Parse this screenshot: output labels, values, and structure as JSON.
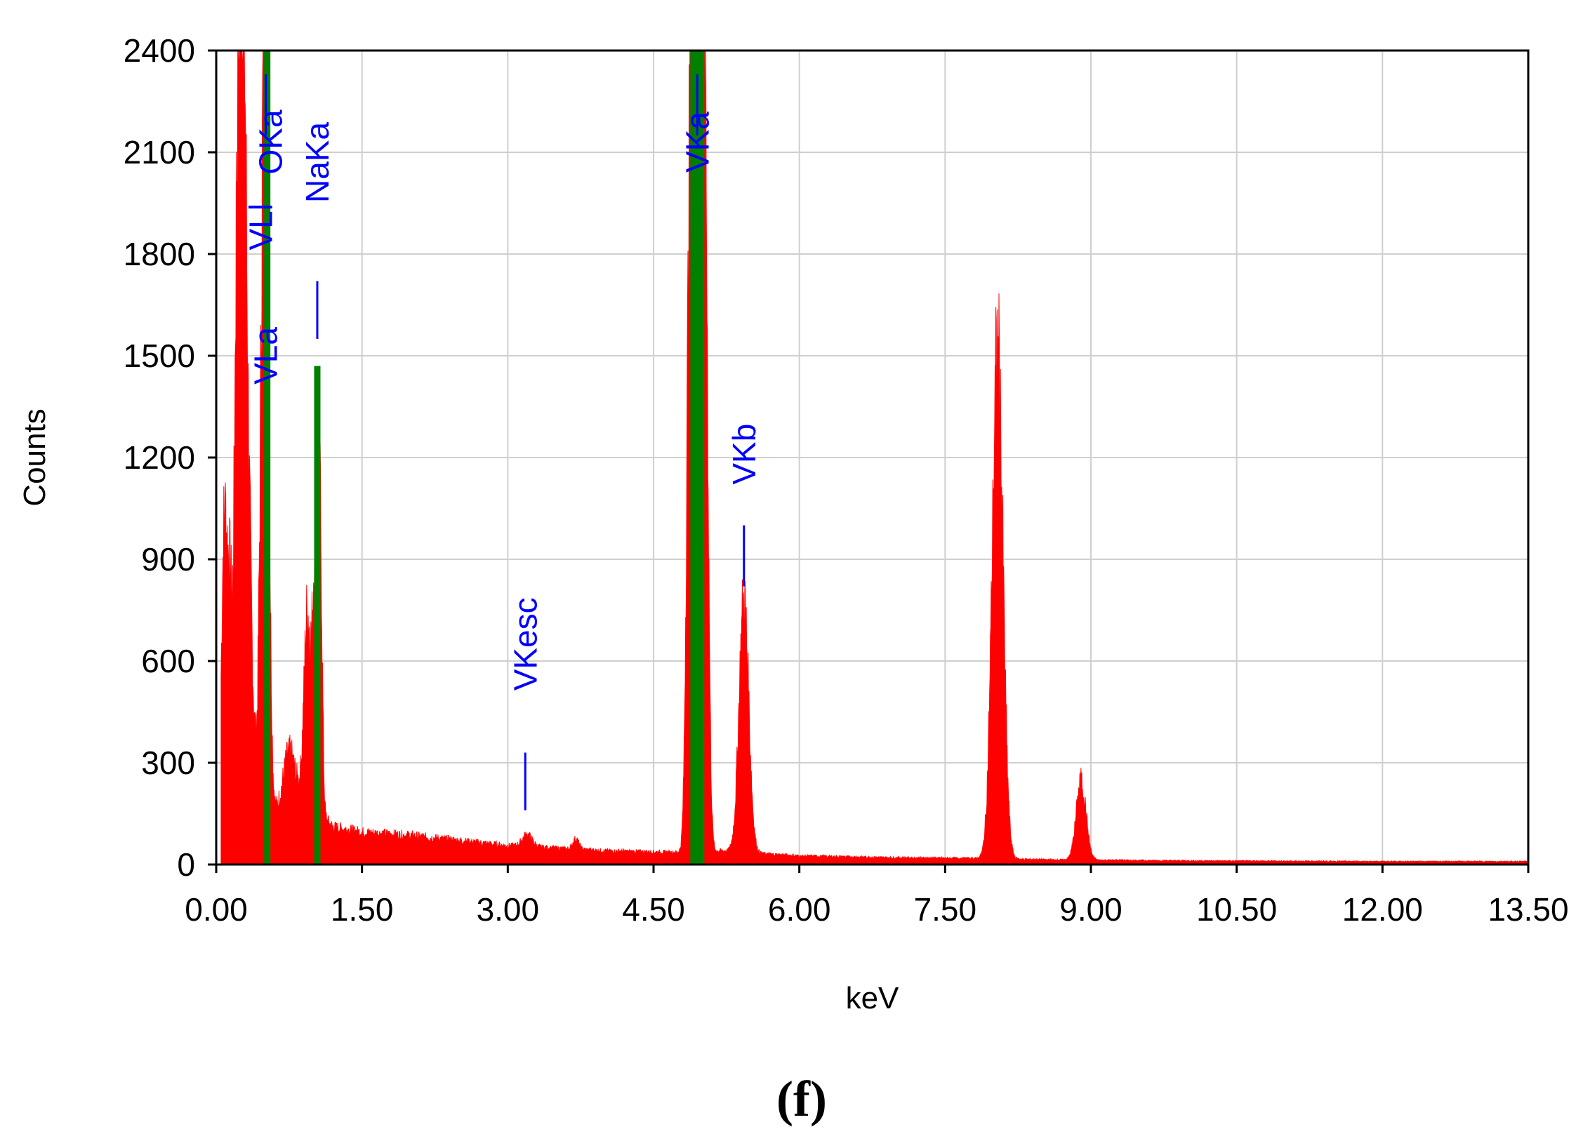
{
  "chart_data": {
    "type": "bar",
    "title": "",
    "xlabel": "keV",
    "ylabel": "Counts",
    "xlim": [
      0,
      13.5
    ],
    "ylim": [
      0,
      2400
    ],
    "xticks": [
      "0.00",
      "1.50",
      "3.00",
      "4.50",
      "6.00",
      "7.50",
      "9.00",
      "10.50",
      "12.00",
      "13.50"
    ],
    "xtick_values": [
      0,
      1.5,
      3.0,
      4.5,
      6.0,
      7.5,
      9.0,
      10.5,
      12.0,
      13.5
    ],
    "yticks": [
      "0",
      "300",
      "600",
      "900",
      "1200",
      "1500",
      "1800",
      "2100",
      "2400"
    ],
    "ytick_values": [
      0,
      300,
      600,
      900,
      1200,
      1500,
      1800,
      2100,
      2400
    ],
    "grid": true,
    "colors": {
      "spectrum": "#ff0000",
      "marker": "#008000",
      "label": "#0000ff"
    },
    "spectrum": {
      "peaks": [
        {
          "x": 0.05,
          "h": 380,
          "w": 0.02
        },
        {
          "x": 0.08,
          "h": 500,
          "w": 0.02
        },
        {
          "x": 0.13,
          "h": 450,
          "w": 0.03
        },
        {
          "x": 0.21,
          "h": 820,
          "w": 0.02
        },
        {
          "x": 0.27,
          "h": 2400,
          "w": 0.04
        },
        {
          "x": 0.35,
          "h": 350,
          "w": 0.03
        },
        {
          "x": 0.5,
          "h": 2400,
          "w": 0.035
        },
        {
          "x": 0.75,
          "h": 150,
          "w": 0.06
        },
        {
          "x": 0.94,
          "h": 550,
          "w": 0.035
        },
        {
          "x": 1.02,
          "h": 750,
          "w": 0.025
        },
        {
          "x": 1.07,
          "h": 820,
          "w": 0.02
        },
        {
          "x": 3.2,
          "h": 35,
          "w": 0.05
        },
        {
          "x": 3.7,
          "h": 30,
          "w": 0.03
        },
        {
          "x": 4.87,
          "h": 1400,
          "w": 0.03
        },
        {
          "x": 4.95,
          "h": 2400,
          "w": 0.05
        },
        {
          "x": 5.03,
          "h": 1650,
          "w": 0.03
        },
        {
          "x": 5.43,
          "h": 730,
          "w": 0.05
        },
        {
          "x": 8.04,
          "h": 1470,
          "w": 0.055
        },
        {
          "x": 8.9,
          "h": 230,
          "w": 0.05
        }
      ],
      "background": [
        [
          0.05,
          0
        ],
        [
          0.1,
          430
        ],
        [
          0.2,
          430
        ],
        [
          0.35,
          280
        ],
        [
          0.6,
          150
        ],
        [
          0.9,
          200
        ],
        [
          1.2,
          110
        ],
        [
          1.5,
          95
        ],
        [
          2.0,
          85
        ],
        [
          3.0,
          55
        ],
        [
          4.0,
          40
        ],
        [
          4.8,
          35
        ],
        [
          5.2,
          40
        ],
        [
          5.6,
          32
        ],
        [
          6.0,
          25
        ],
        [
          7.0,
          20
        ],
        [
          7.8,
          18
        ],
        [
          8.2,
          16
        ],
        [
          8.6,
          14
        ],
        [
          9.0,
          13
        ],
        [
          10.0,
          11
        ],
        [
          11.0,
          10
        ],
        [
          12.0,
          9
        ],
        [
          13.5,
          9
        ]
      ]
    },
    "markers": [
      {
        "element": "O",
        "energy": 0.525,
        "height": 2400
      },
      {
        "element": "Na",
        "energy": 1.04,
        "height": 1470
      },
      {
        "element": "V",
        "energy": 4.95,
        "height": 2400
      }
    ],
    "annotations": [
      {
        "text": "VLa",
        "energy": 0.51,
        "dash_from": 2150,
        "dash_to": 2330
      },
      {
        "text": "VLl",
        "energy": 0.46
      },
      {
        "text": "OKa",
        "energy": 0.56
      },
      {
        "text": "NaKa",
        "energy": 1.04,
        "dash_from": 1550,
        "dash_to": 1720
      },
      {
        "text": "VKa",
        "energy": 4.95,
        "dash_from": 2150,
        "dash_to": 2330
      },
      {
        "text": "VKb",
        "energy": 5.43,
        "dash_from": 820,
        "dash_to": 1000
      },
      {
        "text": "VKesc",
        "energy": 3.18,
        "dash_from": 160,
        "dash_to": 330
      }
    ]
  },
  "panel_label": "(f)"
}
